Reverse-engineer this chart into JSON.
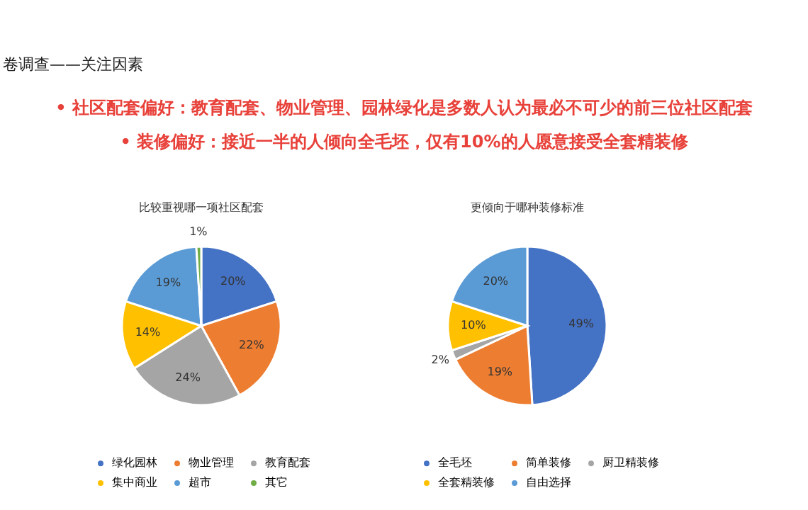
{
  "chart_data": [
    {
      "type": "other",
      "title": "卷调查——关注因素",
      "annotations": [
        "• 社区配套偏好：教育配套、物业管理、园林绿化是多数人认为最必不可少的前三位社区配套",
        "• 装修偏好：接近一半的人倾向全毛坯，仅有10%的人愿意接受全套精装修"
      ]
    },
    {
      "type": "pie",
      "title": "比较重视哪一项社区配套",
      "categories": [
        "绿化园林",
        "物业管理",
        "教育配套",
        "集中商业",
        "超市",
        "其它"
      ],
      "values": [
        20,
        22,
        24,
        14,
        19,
        1
      ],
      "colors": [
        "#4472c4",
        "#ed7d31",
        "#a5a5a5",
        "#ffc000",
        "#5b9bd5",
        "#70ad47"
      ],
      "value_labels": [
        "20%",
        "22%",
        "24%",
        "14%",
        "19%",
        "1%"
      ],
      "legend": "bottom"
    },
    {
      "type": "pie",
      "title": "更倾向于哪种装修标准",
      "categories": [
        "全毛坯",
        "简单装修",
        "厨卫精装修",
        "全套精装修",
        "自由选择"
      ],
      "values": [
        49,
        19,
        2,
        10,
        20
      ],
      "colors": [
        "#4472c4",
        "#ed7d31",
        "#a5a5a5",
        "#ffc000",
        "#5b9bd5"
      ],
      "value_labels": [
        "49%",
        "19%",
        "2%",
        "10%",
        "20%"
      ],
      "legend": "bottom"
    }
  ]
}
